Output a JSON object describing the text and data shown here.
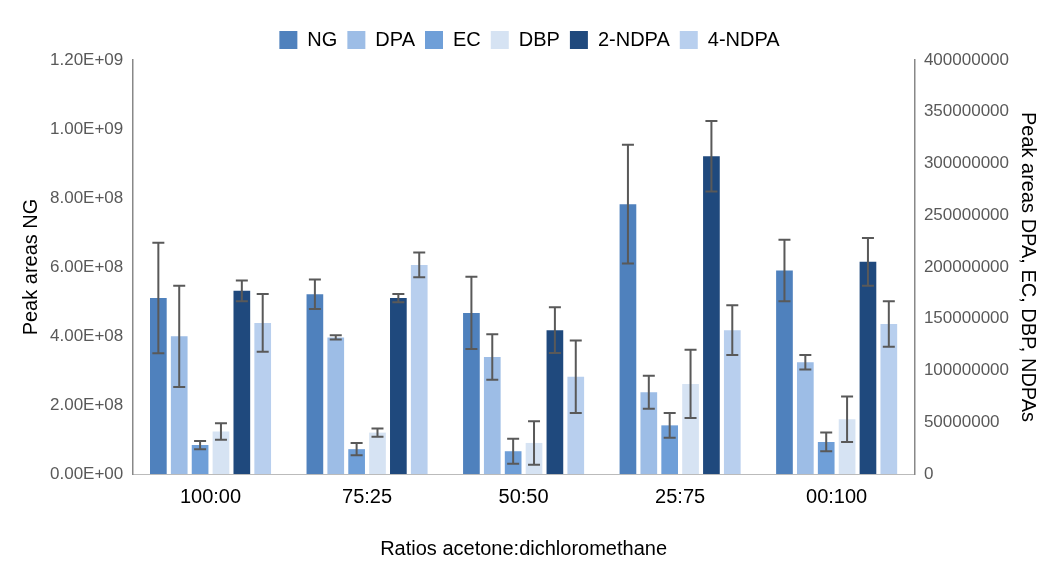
{
  "chart_data": {
    "type": "bar",
    "categories": [
      "100:00",
      "75:25",
      "50:50",
      "25:75",
      "00:100"
    ],
    "xlabel": "Ratios acetone:dichloromethane",
    "ylabel": "Peak areas NG",
    "y2label": "Peak areas DPA, EC, DBP, NDPAs",
    "series": [
      {
        "name": "NG",
        "color": "#4f81bd",
        "values": [
          510000000,
          521000000,
          467000000,
          782000000,
          590000000
        ],
        "errors": [
          160000000,
          43000000,
          105000000,
          172000000,
          89000000
        ]
      },
      {
        "name": "DPA",
        "color": "#9dbde6",
        "axis": "y2",
        "values": [
          133000000,
          132000000,
          113000000,
          79000000,
          108000000
        ],
        "errors": [
          49000000,
          2000000,
          22000000,
          16000000,
          7000000
        ]
      },
      {
        "name": "EC",
        "color": "#6f9fd8",
        "axis": "y2",
        "values": [
          28000000,
          24000000,
          22000000,
          47000000,
          31000000
        ],
        "errors": [
          4000000,
          6000000,
          12000000,
          12000000,
          9000000
        ]
      },
      {
        "name": "DBP",
        "color": "#d6e3f3",
        "axis": "y2",
        "values": [
          41000000,
          40000000,
          30000000,
          87000000,
          53000000
        ],
        "errors": [
          8000000,
          4000000,
          21000000,
          33000000,
          22000000
        ]
      },
      {
        "name": "2-NDPA",
        "color": "#1f497d",
        "axis": "y2",
        "values": [
          177000000,
          170000000,
          139000000,
          307000000,
          205000000
        ],
        "errors": [
          10000000,
          4000000,
          22000000,
          34000000,
          23000000
        ]
      },
      {
        "name": "4-NDPA",
        "color": "#b8cfee",
        "axis": "y2",
        "values": [
          146000000,
          202000000,
          94000000,
          139000000,
          145000000
        ],
        "errors": [
          28000000,
          12000000,
          35000000,
          24000000,
          22000000
        ]
      }
    ],
    "ylim": [
      0,
      1200000000
    ],
    "yticks": [
      {
        "value": 0,
        "label": "0.00E+00"
      },
      {
        "value": 200000000,
        "label": "2.00E+08"
      },
      {
        "value": 400000000,
        "label": "4.00E+08"
      },
      {
        "value": 600000000,
        "label": "6.00E+08"
      },
      {
        "value": 800000000,
        "label": "8.00E+08"
      },
      {
        "value": 1000000000,
        "label": "1.00E+09"
      },
      {
        "value": 1200000000,
        "label": "1.20E+09"
      }
    ],
    "y2lim": [
      0,
      400000000
    ],
    "y2ticks": [
      0,
      50000000,
      100000000,
      150000000,
      200000000,
      250000000,
      300000000,
      350000000,
      400000000
    ],
    "grid": false,
    "legend": "top"
  }
}
